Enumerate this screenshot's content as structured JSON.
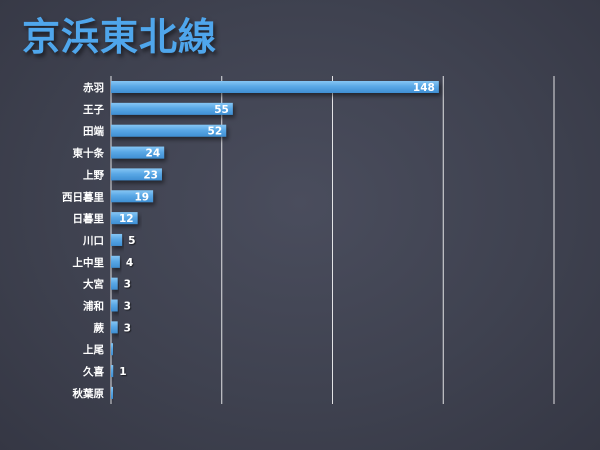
{
  "chart_data": {
    "type": "bar",
    "orientation": "horizontal",
    "title": "京浜東北線",
    "categories": [
      "赤羽",
      "王子",
      "田端",
      "東十条",
      "上野",
      "西日暮里",
      "日暮里",
      "川口",
      "上中里",
      "大宮",
      "浦和",
      "蕨",
      "上尾",
      "久喜",
      "秋葉原"
    ],
    "values": [
      148,
      55,
      52,
      24,
      23,
      19,
      12,
      5,
      4,
      3,
      3,
      3,
      null,
      1,
      null
    ],
    "xlim": [
      0,
      200
    ],
    "grid": true,
    "colors": {
      "bar": "#5aa8e6",
      "bar_top": "#7cc0f2",
      "title": "#4fa6ec",
      "grid": "#ffffff",
      "label": "#ffffff"
    }
  }
}
